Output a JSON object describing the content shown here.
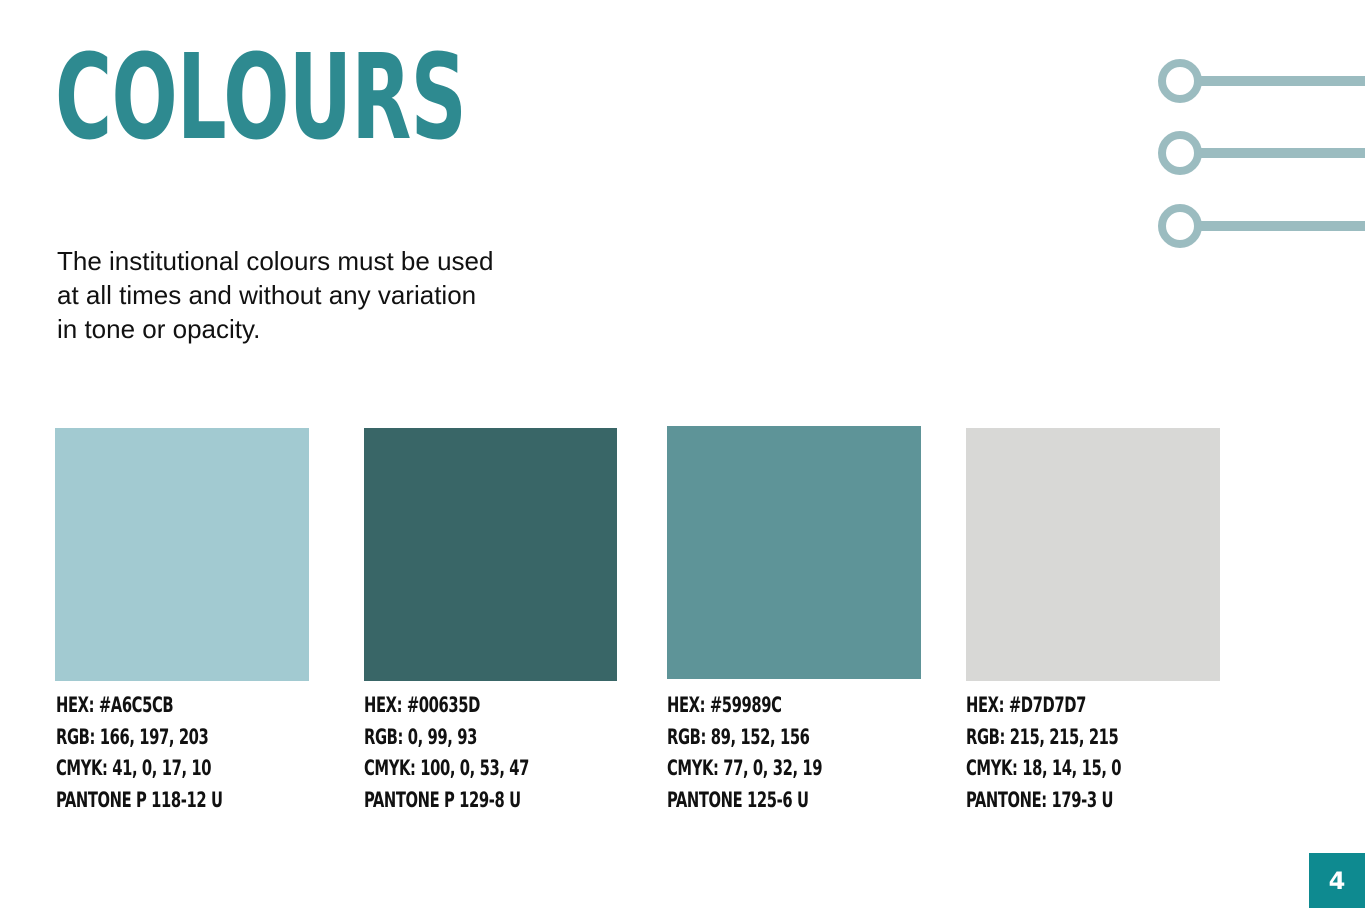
{
  "title": "COLOURS",
  "intro": "The institutional colours must be used at all times and without any variation in tone or opacity.",
  "colors": [
    {
      "fill": "#A2CAD1",
      "hex": "HEX: #A6C5CB",
      "rgb": "RGB: 166, 197, 203",
      "cmyk": "CMYK: 41, 0, 17, 10",
      "pantone": "PANTONE P 118-12 U"
    },
    {
      "fill": "#396667",
      "hex": "HEX: #00635D",
      "rgb": "RGB: 0, 99, 93",
      "cmyk": "CMYK: 100, 0, 53, 47",
      "pantone": "PANTONE P 129-8 U"
    },
    {
      "fill": "#5E9498",
      "hex": "HEX: #59989C",
      "rgb": "RGB: 89, 152, 156",
      "cmyk": "CMYK: 77, 0, 32, 19",
      "pantone": "PANTONE 125-6 U"
    },
    {
      "fill": "#D8D8D6",
      "hex": "HEX: #D7D7D7",
      "rgb": "RGB: 215, 215, 215",
      "cmyk": "CMYK: 18, 14, 15, 0",
      "pantone": "PANTONE: 179-3 U"
    }
  ],
  "page_number": "4",
  "accent_color": "#2E8A90",
  "decor_color": "#9BBCC0"
}
